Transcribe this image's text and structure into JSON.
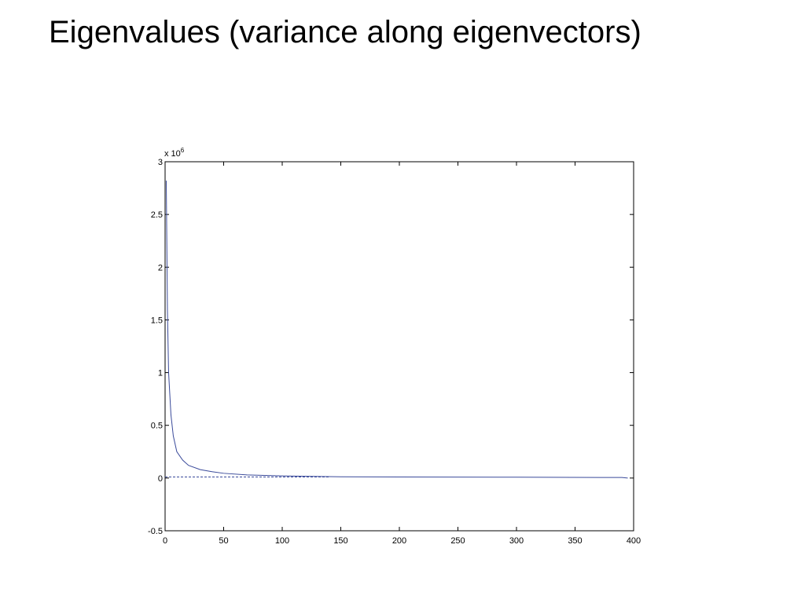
{
  "chart_data": {
    "type": "line",
    "title": "Eigenvalues (variance along eigenvectors)",
    "y_exponent": {
      "base": "x 10",
      "power": "6"
    },
    "series": [
      {
        "color": "#3a4a9a",
        "style": "solid",
        "x": [
          1,
          2,
          3,
          4,
          5,
          7,
          10,
          15,
          20,
          30,
          40,
          50,
          70,
          100,
          150,
          200,
          300,
          390,
          395
        ],
        "values": [
          2.82,
          1.6,
          1.0,
          0.8,
          0.6,
          0.4,
          0.25,
          0.17,
          0.12,
          0.08,
          0.06,
          0.045,
          0.03,
          0.02,
          0.012,
          0.01,
          0.008,
          0.005,
          0.0
        ]
      },
      {
        "color": "#3a4a9a",
        "style": "dashed",
        "x": [
          0,
          140
        ],
        "values": [
          0.01,
          0.01
        ]
      }
    ],
    "xlim": [
      0,
      400
    ],
    "xticks": [
      0,
      50,
      100,
      150,
      200,
      250,
      300,
      350,
      400
    ],
    "ylim": [
      -0.5,
      3
    ],
    "yticks": [
      -0.5,
      0,
      0.5,
      1,
      1.5,
      2,
      2.5,
      3
    ],
    "grid": false
  }
}
